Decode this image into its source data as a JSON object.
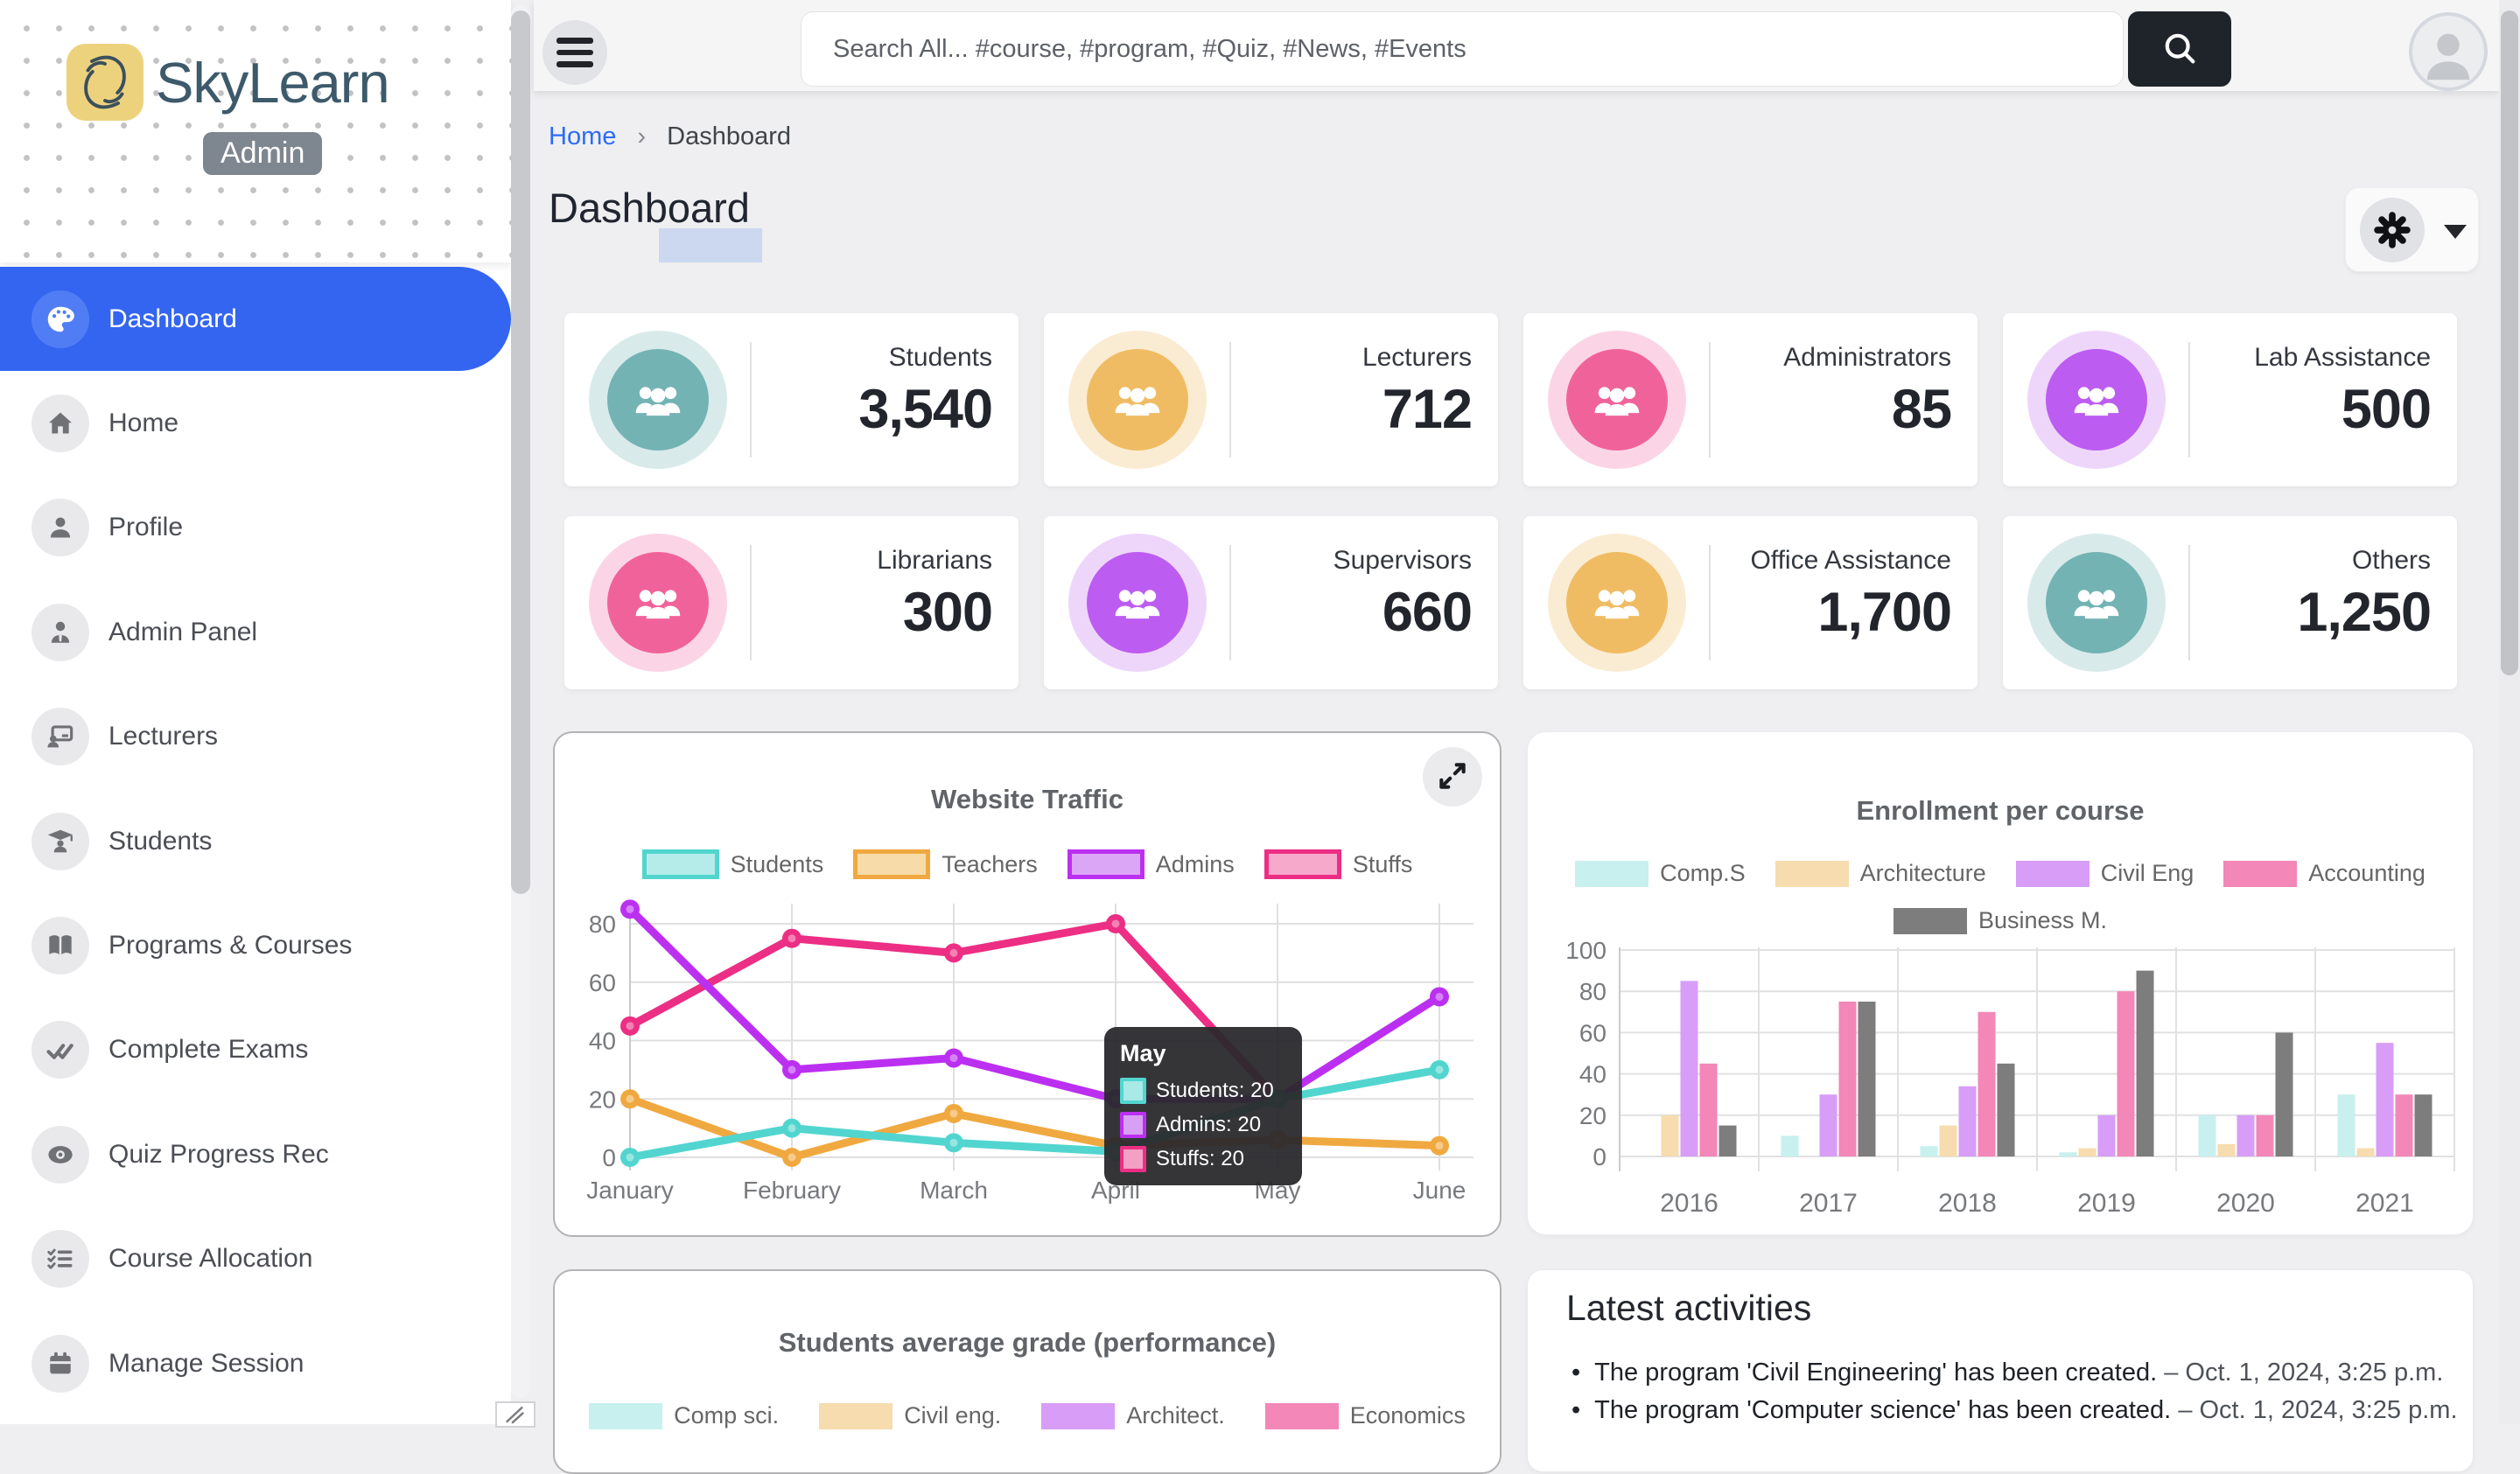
{
  "brand": {
    "name": "SkyLearn",
    "badge": "Admin"
  },
  "colors": {
    "accent_blue": "#3465f0",
    "active_icon_circle": "#517df4",
    "search_button": "#1f242b",
    "breadcrumb_link": "#2c6cf6"
  },
  "sidebar": {
    "items": [
      {
        "label": "Dashboard",
        "icon": "palette-icon",
        "active": true
      },
      {
        "label": "Home",
        "icon": "home-icon",
        "active": false
      },
      {
        "label": "Profile",
        "icon": "person-icon",
        "active": false
      },
      {
        "label": "Admin Panel",
        "icon": "person-tie-icon",
        "active": false
      },
      {
        "label": "Lecturers",
        "icon": "presenter-icon",
        "active": false
      },
      {
        "label": "Students",
        "icon": "graduate-icon",
        "active": false
      },
      {
        "label": "Programs & Courses",
        "icon": "book-icon",
        "active": false
      },
      {
        "label": "Complete Exams",
        "icon": "double-check-icon",
        "active": false
      },
      {
        "label": "Quiz Progress Rec",
        "icon": "disc-eye-icon",
        "active": false
      },
      {
        "label": "Course Allocation",
        "icon": "checklist-icon",
        "active": false
      },
      {
        "label": "Manage Session",
        "icon": "calendar-icon",
        "active": false
      }
    ]
  },
  "topbar": {
    "search_placeholder": "Search All... #course, #program, #Quiz, #News, #Events"
  },
  "breadcrumb": {
    "home": "Home",
    "separator": "›",
    "current": "Dashboard"
  },
  "page_title": "Dashboard",
  "stat_themes": {
    "teal": {
      "inner": "#74b3b4",
      "ring": "#d9eaea"
    },
    "amber": {
      "inner": "#f0bc63",
      "ring": "#faecd2"
    },
    "pink": {
      "inner": "#f0639a",
      "ring": "#fbd5e6"
    },
    "purple": {
      "inner": "#bc5cf1",
      "ring": "#eed6fb"
    }
  },
  "stats": [
    {
      "label": "Students",
      "value": "3,540",
      "theme": "teal"
    },
    {
      "label": "Lecturers",
      "value": "712",
      "theme": "amber"
    },
    {
      "label": "Administrators",
      "value": "85",
      "theme": "pink"
    },
    {
      "label": "Lab Assistance",
      "value": "500",
      "theme": "purple"
    },
    {
      "label": "Librarians",
      "value": "300",
      "theme": "pink"
    },
    {
      "label": "Supervisors",
      "value": "660",
      "theme": "purple"
    },
    {
      "label": "Office Assistance",
      "value": "1,700",
      "theme": "amber"
    },
    {
      "label": "Others",
      "value": "1,250",
      "theme": "teal"
    }
  ],
  "chart_data": [
    {
      "id": "traffic",
      "type": "line",
      "title": "Website Traffic",
      "x": [
        "January",
        "February",
        "March",
        "April",
        "May",
        "June"
      ],
      "ylim": [
        0,
        88
      ],
      "yticks": [
        0,
        20,
        40,
        60,
        80
      ],
      "grid": true,
      "legend_position": "top",
      "series": [
        {
          "name": "Students",
          "color": "#52d5cf",
          "legend_fill": "#b5ecea",
          "values": [
            0,
            10,
            5,
            2,
            20,
            30
          ]
        },
        {
          "name": "Teachers",
          "color": "#f0a940",
          "legend_fill": "#f7dcaa",
          "values": [
            20,
            0,
            15,
            4,
            6,
            4
          ]
        },
        {
          "name": "Admins",
          "color": "#bb30f0",
          "legend_fill": "#dca6f7",
          "values": [
            85,
            30,
            34,
            20,
            20,
            55
          ]
        },
        {
          "name": "Stuffs",
          "color": "#ec2e84",
          "legend_fill": "#f6a9cb",
          "values": [
            45,
            75,
            70,
            80,
            20,
            null
          ]
        }
      ],
      "tooltip": {
        "title": "May",
        "rows": [
          {
            "label": "Students",
            "value": 20,
            "color": "#52d5cf",
            "fill": "#a9e9e6"
          },
          {
            "label": "Admins",
            "value": 20,
            "color": "#bb30f0",
            "fill": "#d7a0f5"
          },
          {
            "label": "Stuffs",
            "value": 20,
            "color": "#ec2e84",
            "fill": "#f2a0c4"
          }
        ]
      }
    },
    {
      "id": "enrollment",
      "type": "bar",
      "title": "Enrollment per course",
      "categories": [
        "2016",
        "2017",
        "2018",
        "2019",
        "2020",
        "2021"
      ],
      "ylim": [
        0,
        100
      ],
      "yticks": [
        0,
        20,
        40,
        60,
        80,
        100
      ],
      "grid": true,
      "legend_position": "top",
      "series": [
        {
          "name": "Comp.S",
          "color": "#c7f0ee",
          "values": [
            0,
            10,
            5,
            2,
            20,
            30
          ]
        },
        {
          "name": "Architecture",
          "color": "#f6dcae",
          "values": [
            20,
            0,
            15,
            4,
            6,
            4
          ]
        },
        {
          "name": "Civil Eng",
          "color": "#d79df7",
          "values": [
            85,
            30,
            34,
            20,
            20,
            55
          ]
        },
        {
          "name": "Accounting",
          "color": "#f287b8",
          "values": [
            45,
            75,
            70,
            80,
            20,
            30
          ]
        },
        {
          "name": "Business M.",
          "color": "#7d7d7d",
          "values": [
            15,
            75,
            45,
            90,
            60,
            30
          ]
        }
      ]
    },
    {
      "id": "grades",
      "type": "line",
      "title": "Students average grade (performance)",
      "note": "plot area clipped below viewport; only title and legend visible",
      "legend": [
        {
          "name": "Comp sci.",
          "color": "#c7f0ee"
        },
        {
          "name": "Civil eng.",
          "color": "#f6dcae"
        },
        {
          "name": "Architect.",
          "color": "#d79df7"
        },
        {
          "name": "Economics",
          "color": "#f287b8"
        }
      ]
    }
  ],
  "activities": {
    "title": "Latest activities",
    "items": [
      {
        "text": "The program 'Civil Engineering' has been created.",
        "date": "– Oct. 1, 2024, 3:25 p.m."
      },
      {
        "text": "The program 'Computer science' has been created.",
        "date": "– Oct. 1, 2024, 3:25 p.m."
      }
    ]
  }
}
